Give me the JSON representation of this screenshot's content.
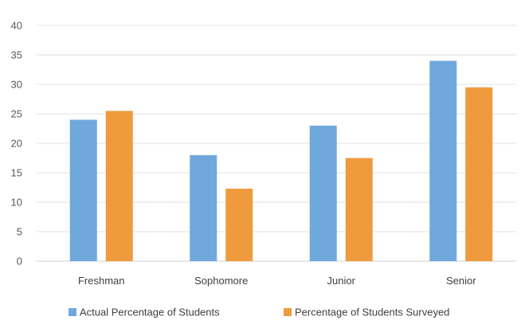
{
  "chart_data": {
    "type": "bar",
    "categories": [
      "Freshman",
      "Sophomore",
      "Junior",
      "Senior"
    ],
    "series": [
      {
        "name": "Actual Percentage of Students",
        "values": [
          24,
          18,
          23,
          34
        ],
        "color": "#6fa8dc"
      },
      {
        "name": "Percentage of Students Surveyed",
        "values": [
          25.5,
          12.3,
          17.5,
          29.5
        ],
        "color": "#f09a3e"
      }
    ],
    "ylim": [
      0,
      40
    ],
    "yticks": [
      0,
      5,
      10,
      15,
      20,
      25,
      30,
      35,
      40
    ],
    "grid": true,
    "legend_position": "bottom"
  }
}
